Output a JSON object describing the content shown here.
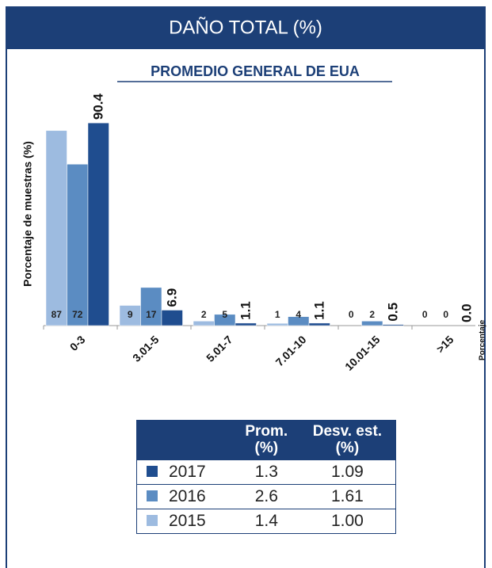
{
  "header": {
    "title": "DAÑO TOTAL (%)"
  },
  "chart_data": {
    "type": "bar",
    "subtitle": "PROMEDIO GENERAL DE EUA",
    "ylabel": "Porcentaje de muestras (%)",
    "xlabel": "Porcentaje",
    "categories": [
      "0-3",
      "3.01-5",
      "5.01-7",
      "7.01-10",
      "10.01-15",
      ">15"
    ],
    "ylim": [
      0,
      100
    ],
    "series": [
      {
        "name": "2015",
        "color": "#9dbbe0",
        "values": [
          87,
          9,
          2,
          1,
          0,
          0
        ]
      },
      {
        "name": "2016",
        "color": "#5b8cc2",
        "values": [
          72,
          17,
          5,
          4,
          2,
          0
        ]
      },
      {
        "name": "2017",
        "color": "#1f4d8f",
        "values": [
          90.4,
          6.9,
          1.1,
          1.1,
          0.5,
          0.0
        ],
        "value_labels": [
          "90.4",
          "6.9",
          "1.1",
          "1.1",
          "0.5",
          "0.0"
        ]
      }
    ]
  },
  "table": {
    "columns": [
      "Prom. (%)",
      "Desv. est. (%)"
    ],
    "rows": [
      {
        "label": "2017",
        "color": "#1f4d8f",
        "cells": [
          "1.3",
          "1.09"
        ]
      },
      {
        "label": "2016",
        "color": "#5b8cc2",
        "cells": [
          "2.6",
          "1.61"
        ]
      },
      {
        "label": "2015",
        "color": "#9dbbe0",
        "cells": [
          "1.4",
          "1.00"
        ]
      }
    ]
  }
}
